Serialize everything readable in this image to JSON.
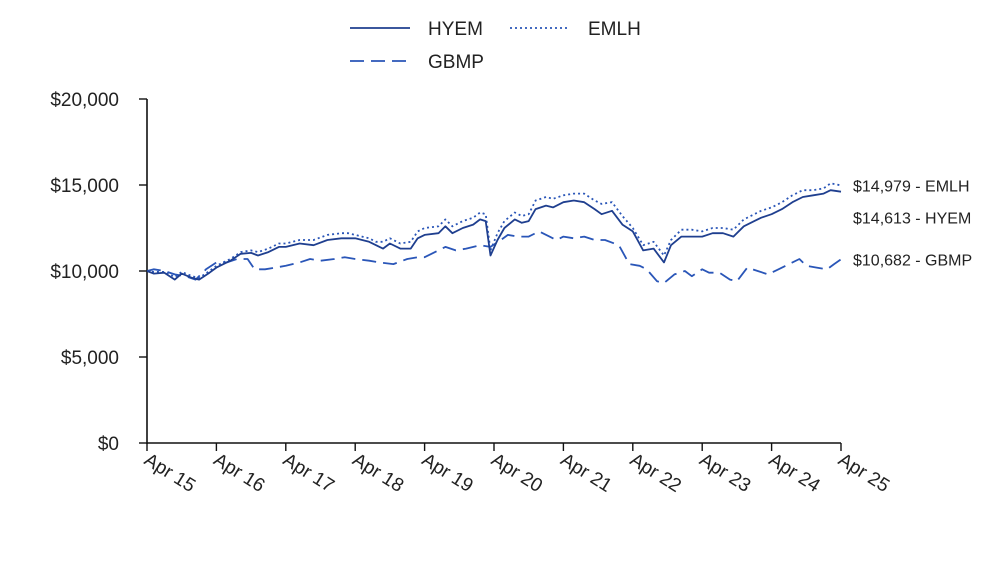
{
  "chart_data": {
    "type": "line",
    "title": "",
    "xlabel": "",
    "ylabel": "",
    "ylim": [
      0,
      20000
    ],
    "yticks": [
      {
        "value": 0,
        "label": "$0"
      },
      {
        "value": 5000,
        "label": "$5,000"
      },
      {
        "value": 10000,
        "label": "$10,000"
      },
      {
        "value": 15000,
        "label": "$15,000"
      },
      {
        "value": 20000,
        "label": "$20,000"
      }
    ],
    "xlim": [
      2015.0,
      2025.0
    ],
    "xticks": [
      {
        "value": 2015,
        "label": "Apr 15"
      },
      {
        "value": 2016,
        "label": "Apr 16"
      },
      {
        "value": 2017,
        "label": "Apr 17"
      },
      {
        "value": 2018,
        "label": "Apr 18"
      },
      {
        "value": 2019,
        "label": "Apr 19"
      },
      {
        "value": 2020,
        "label": "Apr 20"
      },
      {
        "value": 2021,
        "label": "Apr 21"
      },
      {
        "value": 2022,
        "label": "Apr 22"
      },
      {
        "value": 2023,
        "label": "Apr 23"
      },
      {
        "value": 2024,
        "label": "Apr 24"
      },
      {
        "value": 2025,
        "label": "Apr 25"
      }
    ],
    "grid": false,
    "legend_position": "top",
    "series": [
      {
        "name": "HYEM",
        "style": "solid",
        "color": "#1f3f8f",
        "end_label": "$14,613 - HYEM",
        "points": [
          [
            2015.0,
            10000
          ],
          [
            2015.1,
            9850
          ],
          [
            2015.25,
            9900
          ],
          [
            2015.4,
            9500
          ],
          [
            2015.5,
            9850
          ],
          [
            2015.65,
            9600
          ],
          [
            2015.75,
            9500
          ],
          [
            2015.9,
            9900
          ],
          [
            2016.0,
            10200
          ],
          [
            2016.2,
            10600
          ],
          [
            2016.35,
            11000
          ],
          [
            2016.5,
            11050
          ],
          [
            2016.6,
            10900
          ],
          [
            2016.75,
            11100
          ],
          [
            2016.9,
            11400
          ],
          [
            2017.0,
            11400
          ],
          [
            2017.2,
            11600
          ],
          [
            2017.4,
            11500
          ],
          [
            2017.6,
            11800
          ],
          [
            2017.8,
            11900
          ],
          [
            2017.9,
            11900
          ],
          [
            2018.0,
            11900
          ],
          [
            2018.2,
            11700
          ],
          [
            2018.3,
            11500
          ],
          [
            2018.4,
            11300
          ],
          [
            2018.5,
            11600
          ],
          [
            2018.65,
            11300
          ],
          [
            2018.8,
            11300
          ],
          [
            2018.9,
            11900
          ],
          [
            2019.0,
            12100
          ],
          [
            2019.2,
            12200
          ],
          [
            2019.3,
            12600
          ],
          [
            2019.4,
            12200
          ],
          [
            2019.55,
            12500
          ],
          [
            2019.7,
            12700
          ],
          [
            2019.8,
            13000
          ],
          [
            2019.88,
            12900
          ],
          [
            2019.95,
            10900
          ],
          [
            2020.05,
            11800
          ],
          [
            2020.15,
            12500
          ],
          [
            2020.3,
            13000
          ],
          [
            2020.4,
            12800
          ],
          [
            2020.5,
            12900
          ],
          [
            2020.6,
            13600
          ],
          [
            2020.75,
            13800
          ],
          [
            2020.85,
            13700
          ],
          [
            2021.0,
            14000
          ],
          [
            2021.15,
            14100
          ],
          [
            2021.3,
            14000
          ],
          [
            2021.45,
            13600
          ],
          [
            2021.55,
            13300
          ],
          [
            2021.7,
            13500
          ],
          [
            2021.85,
            12700
          ],
          [
            2022.0,
            12300
          ],
          [
            2022.15,
            11200
          ],
          [
            2022.3,
            11300
          ],
          [
            2022.45,
            10500
          ],
          [
            2022.55,
            11500
          ],
          [
            2022.7,
            12000
          ],
          [
            2022.85,
            12000
          ],
          [
            2023.0,
            12000
          ],
          [
            2023.15,
            12200
          ],
          [
            2023.3,
            12200
          ],
          [
            2023.45,
            12000
          ],
          [
            2023.6,
            12600
          ],
          [
            2023.75,
            12900
          ],
          [
            2023.85,
            13100
          ],
          [
            2024.0,
            13300
          ],
          [
            2024.15,
            13600
          ],
          [
            2024.3,
            14000
          ],
          [
            2024.45,
            14300
          ],
          [
            2024.6,
            14400
          ],
          [
            2024.75,
            14500
          ],
          [
            2024.85,
            14700
          ],
          [
            2025.0,
            14613
          ]
        ]
      },
      {
        "name": "EMLH",
        "style": "dotted",
        "color": "#2a56b8",
        "end_label": "$14,979 - EMLH",
        "points": [
          [
            2015.0,
            10000
          ],
          [
            2015.1,
            9950
          ],
          [
            2015.25,
            9950
          ],
          [
            2015.4,
            9650
          ],
          [
            2015.5,
            9950
          ],
          [
            2015.65,
            9700
          ],
          [
            2015.75,
            9600
          ],
          [
            2015.9,
            10000
          ],
          [
            2016.0,
            10300
          ],
          [
            2016.2,
            10700
          ],
          [
            2016.35,
            11100
          ],
          [
            2016.5,
            11200
          ],
          [
            2016.6,
            11100
          ],
          [
            2016.75,
            11300
          ],
          [
            2016.9,
            11600
          ],
          [
            2017.0,
            11600
          ],
          [
            2017.2,
            11800
          ],
          [
            2017.4,
            11800
          ],
          [
            2017.6,
            12100
          ],
          [
            2017.8,
            12200
          ],
          [
            2017.9,
            12200
          ],
          [
            2018.0,
            12100
          ],
          [
            2018.2,
            11900
          ],
          [
            2018.3,
            11700
          ],
          [
            2018.4,
            11700
          ],
          [
            2018.5,
            11900
          ],
          [
            2018.65,
            11600
          ],
          [
            2018.8,
            11700
          ],
          [
            2018.9,
            12300
          ],
          [
            2019.0,
            12500
          ],
          [
            2019.2,
            12600
          ],
          [
            2019.3,
            13000
          ],
          [
            2019.4,
            12600
          ],
          [
            2019.55,
            12900
          ],
          [
            2019.7,
            13100
          ],
          [
            2019.8,
            13400
          ],
          [
            2019.88,
            13300
          ],
          [
            2019.95,
            11200
          ],
          [
            2020.05,
            12200
          ],
          [
            2020.15,
            12900
          ],
          [
            2020.3,
            13400
          ],
          [
            2020.4,
            13200
          ],
          [
            2020.5,
            13300
          ],
          [
            2020.6,
            14100
          ],
          [
            2020.75,
            14300
          ],
          [
            2020.85,
            14200
          ],
          [
            2021.0,
            14400
          ],
          [
            2021.15,
            14500
          ],
          [
            2021.3,
            14500
          ],
          [
            2021.45,
            14100
          ],
          [
            2021.55,
            13900
          ],
          [
            2021.7,
            14000
          ],
          [
            2021.85,
            13200
          ],
          [
            2022.0,
            12500
          ],
          [
            2022.15,
            11500
          ],
          [
            2022.3,
            11700
          ],
          [
            2022.45,
            10900
          ],
          [
            2022.55,
            11800
          ],
          [
            2022.7,
            12400
          ],
          [
            2022.85,
            12400
          ],
          [
            2023.0,
            12300
          ],
          [
            2023.15,
            12500
          ],
          [
            2023.3,
            12500
          ],
          [
            2023.45,
            12400
          ],
          [
            2023.6,
            13000
          ],
          [
            2023.75,
            13300
          ],
          [
            2023.85,
            13500
          ],
          [
            2024.0,
            13700
          ],
          [
            2024.15,
            14000
          ],
          [
            2024.3,
            14400
          ],
          [
            2024.45,
            14700
          ],
          [
            2024.6,
            14700
          ],
          [
            2024.75,
            14800
          ],
          [
            2024.85,
            15100
          ],
          [
            2025.0,
            14979
          ]
        ]
      },
      {
        "name": "GBMP",
        "style": "dashed",
        "color": "#2a56b8",
        "end_label": "$10,682 - GBMP",
        "points": [
          [
            2015.0,
            10000
          ],
          [
            2015.1,
            10100
          ],
          [
            2015.25,
            10000
          ],
          [
            2015.4,
            9800
          ],
          [
            2015.55,
            9700
          ],
          [
            2015.7,
            9500
          ],
          [
            2015.85,
            10100
          ],
          [
            2016.0,
            10500
          ],
          [
            2016.15,
            10500
          ],
          [
            2016.3,
            10700
          ],
          [
            2016.45,
            10700
          ],
          [
            2016.55,
            10100
          ],
          [
            2016.7,
            10100
          ],
          [
            2016.85,
            10200
          ],
          [
            2017.0,
            10300
          ],
          [
            2017.2,
            10500
          ],
          [
            2017.35,
            10700
          ],
          [
            2017.5,
            10600
          ],
          [
            2017.7,
            10700
          ],
          [
            2017.85,
            10800
          ],
          [
            2018.0,
            10700
          ],
          [
            2018.2,
            10600
          ],
          [
            2018.35,
            10500
          ],
          [
            2018.55,
            10400
          ],
          [
            2018.75,
            10700
          ],
          [
            2018.9,
            10800
          ],
          [
            2019.0,
            10800
          ],
          [
            2019.15,
            11100
          ],
          [
            2019.3,
            11400
          ],
          [
            2019.45,
            11200
          ],
          [
            2019.6,
            11300
          ],
          [
            2019.8,
            11500
          ],
          [
            2019.95,
            11400
          ],
          [
            2020.1,
            11800
          ],
          [
            2020.2,
            12100
          ],
          [
            2020.35,
            12000
          ],
          [
            2020.5,
            12000
          ],
          [
            2020.65,
            12300
          ],
          [
            2020.8,
            12000
          ],
          [
            2020.9,
            11800
          ],
          [
            2021.0,
            12000
          ],
          [
            2021.15,
            11900
          ],
          [
            2021.3,
            12000
          ],
          [
            2021.45,
            11800
          ],
          [
            2021.6,
            11800
          ],
          [
            2021.8,
            11500
          ],
          [
            2021.95,
            10400
          ],
          [
            2022.1,
            10300
          ],
          [
            2022.2,
            10100
          ],
          [
            2022.35,
            9400
          ],
          [
            2022.45,
            9300
          ],
          [
            2022.6,
            9800
          ],
          [
            2022.75,
            10000
          ],
          [
            2022.85,
            9700
          ],
          [
            2023.0,
            10100
          ],
          [
            2023.1,
            9900
          ],
          [
            2023.25,
            9900
          ],
          [
            2023.4,
            9500
          ],
          [
            2023.5,
            9400
          ],
          [
            2023.65,
            10200
          ],
          [
            2023.8,
            10000
          ],
          [
            2023.95,
            9800
          ],
          [
            2024.1,
            10100
          ],
          [
            2024.25,
            10400
          ],
          [
            2024.4,
            10700
          ],
          [
            2024.5,
            10300
          ],
          [
            2024.65,
            10200
          ],
          [
            2024.8,
            10100
          ],
          [
            2024.9,
            10400
          ],
          [
            2025.0,
            10682
          ]
        ]
      }
    ]
  }
}
